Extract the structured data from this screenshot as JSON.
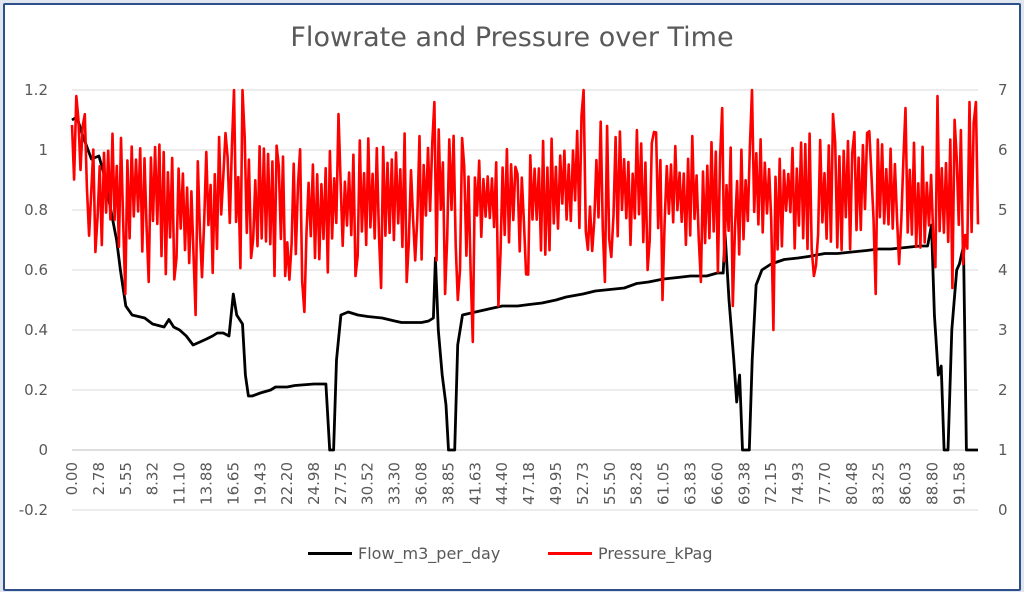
{
  "chart_data": {
    "type": "line",
    "title": "Flowrate and Pressure over Time",
    "x_tick_labels": [
      "0.00",
      "2.78",
      "5.55",
      "8.32",
      "11.10",
      "13.88",
      "16.65",
      "19.43",
      "22.20",
      "24.98",
      "27.75",
      "30.52",
      "33.30",
      "36.08",
      "38.85",
      "41.63",
      "44.40",
      "47.18",
      "49.95",
      "52.73",
      "55.50",
      "58.28",
      "61.05",
      "63.83",
      "66.60",
      "69.38",
      "72.15",
      "74.93",
      "77.70",
      "80.48",
      "83.25",
      "86.03",
      "88.80",
      "91.58"
    ],
    "xlim": [
      0,
      93.5
    ],
    "y_left": {
      "ticks": [
        "-0.2",
        "0",
        "0.2",
        "0.4",
        "0.6",
        "0.8",
        "1",
        "1.2"
      ],
      "lim": [
        -0.2,
        1.2
      ]
    },
    "y_right": {
      "ticks": [
        "0",
        "1",
        "2",
        "3",
        "4",
        "5",
        "6",
        "7"
      ],
      "lim": [
        0,
        7
      ]
    },
    "series": [
      {
        "name": "Flow_m3_per_day",
        "axis": "left",
        "color": "#000000",
        "points": [
          [
            0,
            1.1
          ],
          [
            0.5,
            1.11
          ],
          [
            1.2,
            1.04
          ],
          [
            2.0,
            0.97
          ],
          [
            2.78,
            0.98
          ],
          [
            3.3,
            0.92
          ],
          [
            4.0,
            0.8
          ],
          [
            4.6,
            0.7
          ],
          [
            5.0,
            0.6
          ],
          [
            5.55,
            0.48
          ],
          [
            6.2,
            0.45
          ],
          [
            7.5,
            0.44
          ],
          [
            8.32,
            0.42
          ],
          [
            9.5,
            0.41
          ],
          [
            10.0,
            0.435
          ],
          [
            10.5,
            0.41
          ],
          [
            11.1,
            0.4
          ],
          [
            11.8,
            0.38
          ],
          [
            12.5,
            0.35
          ],
          [
            13.2,
            0.36
          ],
          [
            13.88,
            0.37
          ],
          [
            14.5,
            0.38
          ],
          [
            15.0,
            0.39
          ],
          [
            15.6,
            0.39
          ],
          [
            16.2,
            0.38
          ],
          [
            16.65,
            0.52
          ],
          [
            17.0,
            0.45
          ],
          [
            17.6,
            0.42
          ],
          [
            17.9,
            0.25
          ],
          [
            18.2,
            0.18
          ],
          [
            18.6,
            0.18
          ],
          [
            19.43,
            0.19
          ],
          [
            20.5,
            0.2
          ],
          [
            21.0,
            0.21
          ],
          [
            22.2,
            0.21
          ],
          [
            23.0,
            0.215
          ],
          [
            24.98,
            0.22
          ],
          [
            25.8,
            0.22
          ],
          [
            26.2,
            0.22
          ],
          [
            26.6,
            0.0
          ],
          [
            27.0,
            0.0
          ],
          [
            27.3,
            0.3
          ],
          [
            27.75,
            0.45
          ],
          [
            28.5,
            0.46
          ],
          [
            29.5,
            0.45
          ],
          [
            30.52,
            0.445
          ],
          [
            32.0,
            0.44
          ],
          [
            33.3,
            0.43
          ],
          [
            34.0,
            0.425
          ],
          [
            35.0,
            0.425
          ],
          [
            36.08,
            0.425
          ],
          [
            36.8,
            0.43
          ],
          [
            37.3,
            0.44
          ],
          [
            37.5,
            0.64
          ],
          [
            37.8,
            0.4
          ],
          [
            38.2,
            0.25
          ],
          [
            38.6,
            0.15
          ],
          [
            38.85,
            0.0
          ],
          [
            39.5,
            0.0
          ],
          [
            39.8,
            0.35
          ],
          [
            40.3,
            0.45
          ],
          [
            41.63,
            0.46
          ],
          [
            43.0,
            0.47
          ],
          [
            44.4,
            0.48
          ],
          [
            46.0,
            0.48
          ],
          [
            47.18,
            0.485
          ],
          [
            48.5,
            0.49
          ],
          [
            49.95,
            0.5
          ],
          [
            51.0,
            0.51
          ],
          [
            52.73,
            0.52
          ],
          [
            54.0,
            0.53
          ],
          [
            55.5,
            0.535
          ],
          [
            57.0,
            0.54
          ],
          [
            58.28,
            0.555
          ],
          [
            59.5,
            0.56
          ],
          [
            61.05,
            0.57
          ],
          [
            62.5,
            0.575
          ],
          [
            63.83,
            0.58
          ],
          [
            65.5,
            0.58
          ],
          [
            66.6,
            0.59
          ],
          [
            67.2,
            0.59
          ],
          [
            67.4,
            0.72
          ],
          [
            67.8,
            0.5
          ],
          [
            68.3,
            0.3
          ],
          [
            68.6,
            0.16
          ],
          [
            68.9,
            0.25
          ],
          [
            69.2,
            0.0
          ],
          [
            69.9,
            0.0
          ],
          [
            70.2,
            0.3
          ],
          [
            70.6,
            0.55
          ],
          [
            71.2,
            0.6
          ],
          [
            72.15,
            0.62
          ],
          [
            73.5,
            0.635
          ],
          [
            74.93,
            0.64
          ],
          [
            76.0,
            0.645
          ],
          [
            77.7,
            0.655
          ],
          [
            79.0,
            0.655
          ],
          [
            80.48,
            0.66
          ],
          [
            82.0,
            0.665
          ],
          [
            83.25,
            0.67
          ],
          [
            84.5,
            0.67
          ],
          [
            86.03,
            0.675
          ],
          [
            87.5,
            0.68
          ],
          [
            88.3,
            0.68
          ],
          [
            88.7,
            0.75
          ],
          [
            89.0,
            0.45
          ],
          [
            89.4,
            0.25
          ],
          [
            89.7,
            0.28
          ],
          [
            90.0,
            0.0
          ],
          [
            90.4,
            0.0
          ],
          [
            90.8,
            0.4
          ],
          [
            91.3,
            0.6
          ],
          [
            91.58,
            0.62
          ],
          [
            92.0,
            0.68
          ],
          [
            92.3,
            0.0
          ],
          [
            93.5,
            0.0
          ]
        ]
      },
      {
        "name": "Pressure_kPag",
        "axis": "right",
        "color": "#ff0000",
        "baseline": [
          [
            0,
            5.8
          ],
          [
            1,
            6.0
          ],
          [
            3,
            5.4
          ],
          [
            5,
            5.2
          ],
          [
            8,
            5.3
          ],
          [
            11,
            5.0
          ],
          [
            14,
            5.1
          ],
          [
            16,
            5.3
          ],
          [
            18,
            5.2
          ],
          [
            20,
            5.1
          ],
          [
            24,
            5.0
          ],
          [
            27,
            5.2
          ],
          [
            30,
            5.2
          ],
          [
            33,
            5.3
          ],
          [
            37,
            5.4
          ],
          [
            40,
            5.2
          ],
          [
            44,
            5.2
          ],
          [
            48,
            5.1
          ],
          [
            52,
            5.6
          ],
          [
            56,
            5.4
          ],
          [
            60,
            5.3
          ],
          [
            64,
            5.3
          ],
          [
            68,
            5.1
          ],
          [
            72,
            5.3
          ],
          [
            76,
            5.3
          ],
          [
            80,
            5.2
          ],
          [
            84,
            5.4
          ],
          [
            88,
            5.1
          ],
          [
            91,
            5.5
          ],
          [
            93.5,
            5.6
          ]
        ],
        "spikes": [
          [
            0.5,
            6.9
          ],
          [
            1.2,
            6.4
          ],
          [
            2.5,
            4.3
          ],
          [
            5.6,
            3.6
          ],
          [
            8.0,
            3.8
          ],
          [
            10.8,
            4.2
          ],
          [
            12.7,
            3.25
          ],
          [
            16.8,
            7.0
          ],
          [
            17.6,
            7.0
          ],
          [
            18.5,
            4.2
          ],
          [
            20.8,
            3.9
          ],
          [
            22.0,
            3.9
          ],
          [
            24.0,
            3.3
          ],
          [
            27.5,
            6.6
          ],
          [
            29.2,
            3.9
          ],
          [
            31.8,
            3.7
          ],
          [
            34.6,
            3.8
          ],
          [
            37.5,
            6.8
          ],
          [
            38.6,
            3.6
          ],
          [
            39.9,
            3.5
          ],
          [
            41.4,
            2.8
          ],
          [
            44.0,
            3.4
          ],
          [
            46.0,
            5.6
          ],
          [
            52.7,
            7.0
          ],
          [
            55.0,
            3.8
          ],
          [
            59.5,
            4.0
          ],
          [
            61.0,
            3.5
          ],
          [
            65.0,
            3.8
          ],
          [
            67.2,
            6.7
          ],
          [
            68.3,
            3.4
          ],
          [
            70.1,
            7.0
          ],
          [
            72.4,
            3.0
          ],
          [
            76.5,
            3.9
          ],
          [
            78.6,
            6.6
          ],
          [
            80.8,
            6.3
          ],
          [
            83.0,
            3.6
          ],
          [
            86.0,
            6.7
          ],
          [
            89.4,
            6.9
          ],
          [
            90.8,
            3.7
          ],
          [
            91.9,
            4.1
          ],
          [
            92.6,
            6.8
          ],
          [
            93.3,
            6.8
          ]
        ]
      }
    ]
  }
}
